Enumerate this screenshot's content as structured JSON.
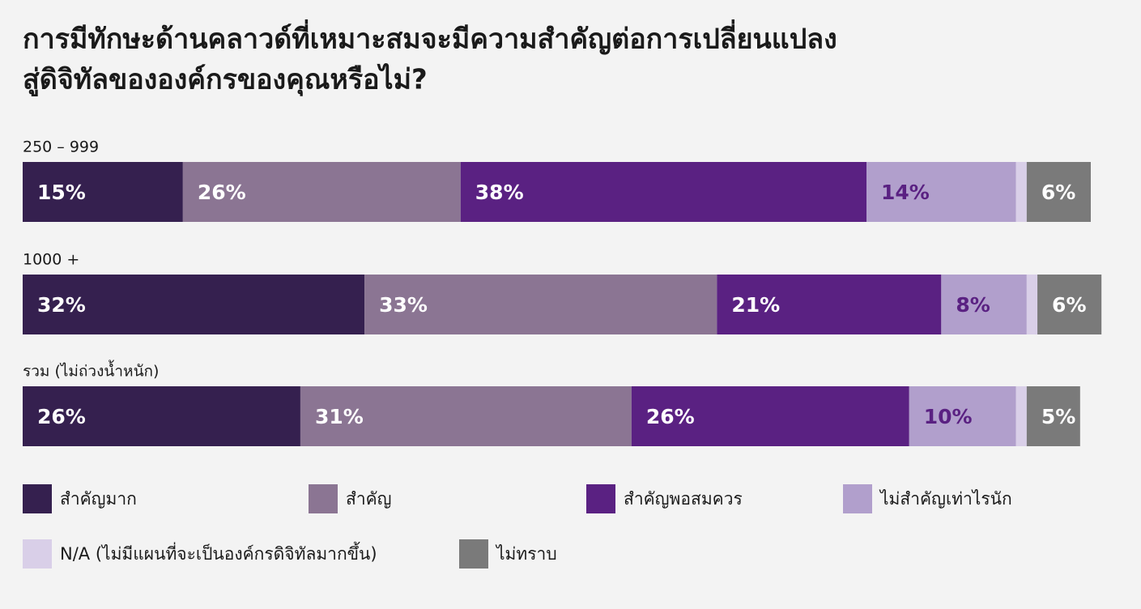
{
  "chart_data": {
    "type": "stacked-bar",
    "title": [
      "การมีทักษะด้านคลาวด์ที่เหมาะสมจะมีความสำคัญต่อการเปลี่ยนแปลง",
      "สู่ดิจิทัลขององค์กรของคุณหรือไม่?"
    ],
    "categories": [
      "250 – 999",
      "1000 +",
      "รวม (ไม่ถ่วงน้ำหนัก)"
    ],
    "xlim": [
      0,
      100
    ],
    "series": [
      {
        "name": "สำคัญมาก",
        "color": "#35204f",
        "label_color": "#ffffff",
        "values": [
          15,
          32,
          26
        ],
        "value_labels": [
          "15%",
          "32%",
          "26%"
        ]
      },
      {
        "name": "สำคัญ",
        "color": "#8b7593",
        "label_color": "#ffffff",
        "values": [
          26,
          33,
          31
        ],
        "value_labels": [
          "26%",
          "33%",
          "31%"
        ]
      },
      {
        "name": "สำคัญพอสมควร",
        "color": "#5a2182",
        "label_color": "#ffffff",
        "values": [
          38,
          21,
          26
        ],
        "value_labels": [
          "38%",
          "21%",
          "26%"
        ]
      },
      {
        "name": "ไม่สำคัญเท่าไรนัก",
        "color": "#b19fcc",
        "label_color": "#5a2182",
        "values": [
          14,
          8,
          10
        ],
        "value_labels": [
          "14%",
          "8%",
          "10%"
        ]
      },
      {
        "name": "N/A (ไม่มีแผนที่จะเป็นองค์กรดิจิทัลมากขึ้น)",
        "color": "#d9cfe8",
        "values": [
          1,
          1,
          1
        ]
      },
      {
        "name": "ไม่ทราบ",
        "color": "#7a7a7a",
        "label_color": "#ffffff",
        "values": [
          6,
          6,
          5
        ],
        "value_labels": [
          "6%",
          "6%",
          "5%"
        ]
      }
    ]
  }
}
